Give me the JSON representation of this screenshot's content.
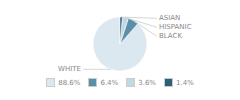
{
  "chart_data": {
    "type": "pie",
    "categories": [
      "WHITE",
      "BLACK",
      "HISPANIC",
      "ASIAN"
    ],
    "values": [
      88.6,
      6.4,
      3.6,
      1.4
    ],
    "value_labels": [
      "88.6%",
      "6.4%",
      "3.6%",
      "1.4%"
    ],
    "colors": [
      "#dce8f0",
      "#5b8fa8",
      "#c2d8e4",
      "#2c5f7a"
    ],
    "legend": "bottom"
  }
}
